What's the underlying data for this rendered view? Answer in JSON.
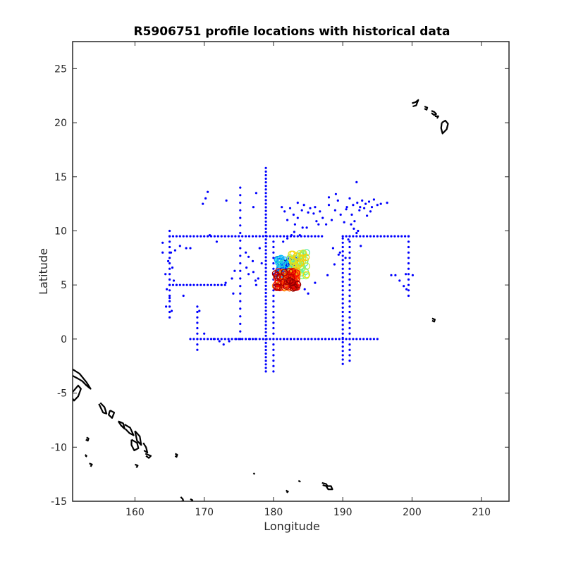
{
  "chart_data": {
    "type": "scatter",
    "title": "R5906751 profile locations with historical data",
    "xlabel": "Longitude",
    "ylabel": "Latitude",
    "xlim": [
      151,
      214
    ],
    "ylim": [
      -15,
      27.5
    ],
    "xticks": [
      160,
      170,
      180,
      190,
      200,
      210
    ],
    "yticks": [
      -15,
      -10,
      -5,
      0,
      5,
      10,
      15,
      20,
      25
    ],
    "xtick_labels": [
      "160",
      "170",
      "180",
      "190",
      "200",
      "210"
    ],
    "ytick_labels": [
      "-15",
      "-10",
      "-5",
      "0",
      "5",
      "10",
      "15",
      "20",
      "25"
    ],
    "grid": false,
    "legend": "none",
    "colors": {
      "historical": "#0000ff",
      "coast": "#000000",
      "track_gradient": [
        "#00008b",
        "#0000ff",
        "#00bfff",
        "#7fff7f",
        "#ffd700",
        "#ff7f00",
        "#ff0000",
        "#8b0000"
      ]
    },
    "series": [
      {
        "kind": "historical",
        "lines": [
          {
            "orient": "h",
            "at": 9.5,
            "from": 165,
            "to": 187,
            "step": 0.5
          },
          {
            "orient": "h",
            "at": 9.5,
            "from": 190,
            "to": 199.5,
            "step": 0.5
          },
          {
            "orient": "h",
            "at": 5.0,
            "from": 165,
            "to": 173,
            "step": 0.5
          },
          {
            "orient": "h",
            "at": 0.0,
            "from": 168,
            "to": 195,
            "step": 0.5
          },
          {
            "orient": "v",
            "at": 165.0,
            "from": 2,
            "to": 10,
            "step": 0.5
          },
          {
            "orient": "v",
            "at": 178.9,
            "from": -3,
            "to": 16,
            "step": 0.33
          },
          {
            "orient": "v",
            "at": 180.0,
            "from": -3,
            "to": 9,
            "step": 0.5
          },
          {
            "orient": "v",
            "at": 190.0,
            "from": -2.3,
            "to": 9.5,
            "step": 0.4
          },
          {
            "orient": "v",
            "at": 191.0,
            "from": -2,
            "to": 9.5,
            "step": 0.5
          },
          {
            "orient": "v",
            "at": 175.2,
            "from": 0,
            "to": 14,
            "step": 0.7
          },
          {
            "orient": "v",
            "at": 169.0,
            "from": -1,
            "to": 3,
            "step": 0.5
          },
          {
            "orient": "v",
            "at": 199.5,
            "from": 4,
            "to": 9.5,
            "step": 0.5
          }
        ],
        "points": [
          [
            170.5,
            13.6
          ],
          [
            170.2,
            13.0
          ],
          [
            169.8,
            12.5
          ],
          [
            173.2,
            12.8
          ],
          [
            177.5,
            13.5
          ],
          [
            177.1,
            12.2
          ],
          [
            181.2,
            12.2
          ],
          [
            181.6,
            11.8
          ],
          [
            182.4,
            12.1
          ],
          [
            182.0,
            11.0
          ],
          [
            183.1,
            10.6
          ],
          [
            183.5,
            12.6
          ],
          [
            184.1,
            11.9
          ],
          [
            184.8,
            10.3
          ],
          [
            185.3,
            12.1
          ],
          [
            185.8,
            11.6
          ],
          [
            186.2,
            10.9
          ],
          [
            186.7,
            11.8
          ],
          [
            187.1,
            11.2
          ],
          [
            187.6,
            10.6
          ],
          [
            188.0,
            12.4
          ],
          [
            188.4,
            11.0
          ],
          [
            188.9,
            11.9
          ],
          [
            189.3,
            12.8
          ],
          [
            189.7,
            11.5
          ],
          [
            190.2,
            10.8
          ],
          [
            190.6,
            12.2
          ],
          [
            191.0,
            13.0
          ],
          [
            191.3,
            11.5
          ],
          [
            191.7,
            10.9
          ],
          [
            192.1,
            12.6
          ],
          [
            192.4,
            11.9
          ],
          [
            192.8,
            12.8
          ],
          [
            193.1,
            12.1
          ],
          [
            193.5,
            11.4
          ],
          [
            193.8,
            12.7
          ],
          [
            194.2,
            12.2
          ],
          [
            194.5,
            12.9
          ],
          [
            195.0,
            12.4
          ],
          [
            195.5,
            12.5
          ],
          [
            196.4,
            12.6
          ],
          [
            192.0,
            14.5
          ],
          [
            183.5,
            11.2
          ],
          [
            185.0,
            11.7
          ],
          [
            186.0,
            12.2
          ],
          [
            188.0,
            13.1
          ],
          [
            189.0,
            13.4
          ],
          [
            190.5,
            12.0
          ],
          [
            191.5,
            12.4
          ],
          [
            192.5,
            12.2
          ],
          [
            193.3,
            12.5
          ],
          [
            194.0,
            11.8
          ],
          [
            184.4,
            12.4
          ],
          [
            182.9,
            11.5
          ],
          [
            192.2,
            10.0
          ],
          [
            191.6,
            10.2
          ],
          [
            191.2,
            10.6
          ],
          [
            192.6,
            8.6
          ],
          [
            186.5,
            10.6
          ],
          [
            184.2,
            10.3
          ],
          [
            183.0,
            9.9
          ],
          [
            190.8,
            9.2
          ],
          [
            192.0,
            9.8
          ],
          [
            165.2,
            8.0
          ],
          [
            164.0,
            8.0
          ],
          [
            165.8,
            8.2
          ],
          [
            166.5,
            8.6
          ],
          [
            167.4,
            8.4
          ],
          [
            168.0,
            8.4
          ],
          [
            171.8,
            9.0
          ],
          [
            173.1,
            5.2
          ],
          [
            174.0,
            5.6
          ],
          [
            174.4,
            6.3
          ],
          [
            176.1,
            6.6
          ],
          [
            176.4,
            6.0
          ],
          [
            177.1,
            6.2
          ],
          [
            177.4,
            5.4
          ],
          [
            176.0,
            8.0
          ],
          [
            176.4,
            7.6
          ],
          [
            177.0,
            7.2
          ],
          [
            178.0,
            8.4
          ],
          [
            178.3,
            7.0
          ],
          [
            177.8,
            5.6
          ],
          [
            177.5,
            5.0
          ],
          [
            164.8,
            7.2
          ],
          [
            165.4,
            6.6
          ],
          [
            164.4,
            6.0
          ],
          [
            165.6,
            5.4
          ],
          [
            164.6,
            4.6
          ],
          [
            165.0,
            3.8
          ],
          [
            164.5,
            3.0
          ],
          [
            165.3,
            2.6
          ],
          [
            164.0,
            8.9
          ],
          [
            166.0,
            5.0
          ],
          [
            167.0,
            4.0
          ],
          [
            168.0,
            5.0
          ],
          [
            184.5,
            4.6
          ],
          [
            185.0,
            4.2
          ],
          [
            186.0,
            5.2
          ],
          [
            187.8,
            5.9
          ],
          [
            188.8,
            6.9
          ],
          [
            189.4,
            7.8
          ],
          [
            188.6,
            8.4
          ],
          [
            189.6,
            8.0
          ],
          [
            190.4,
            7.5
          ],
          [
            181.0,
            6.5
          ],
          [
            181.4,
            9.0
          ],
          [
            182.0,
            9.3
          ],
          [
            182.6,
            9.6
          ],
          [
            183.8,
            9.6
          ],
          [
            197.0,
            5.9
          ],
          [
            197.6,
            5.9
          ],
          [
            198.2,
            5.4
          ],
          [
            198.8,
            4.9
          ],
          [
            199.2,
            4.6
          ],
          [
            200.1,
            5.9
          ],
          [
            199.1,
            6.0
          ],
          [
            171.4,
            0.0
          ],
          [
            172.2,
            -0.2
          ],
          [
            172.8,
            -0.5
          ],
          [
            173.6,
            -0.2
          ],
          [
            174.6,
            0.0
          ],
          [
            176.0,
            0.0
          ],
          [
            176.6,
            0.0
          ],
          [
            177.4,
            0.0
          ],
          [
            181.5,
            0.0
          ],
          [
            182.5,
            0.0
          ],
          [
            183.5,
            0.0
          ],
          [
            184.5,
            0.0
          ],
          [
            185.5,
            0.0
          ],
          [
            186.5,
            0.0
          ],
          [
            187.5,
            0.0
          ],
          [
            188.5,
            0.0
          ],
          [
            170.0,
            0.5
          ],
          [
            169.3,
            2.6
          ],
          [
            174.2,
            4.2
          ],
          [
            170.8,
            9.6
          ],
          [
            172.5,
            5.0
          ]
        ]
      },
      {
        "kind": "float_track",
        "count": 220,
        "lon_range": [
          180.2,
          184.9
        ],
        "lat_range": [
          4.7,
          8.0
        ]
      }
    ],
    "coastlines": [
      [
        [
          151.0,
          -2.8
        ],
        [
          152.0,
          -3.2
        ],
        [
          153.0,
          -4.0
        ],
        [
          153.6,
          -4.6
        ],
        [
          153.0,
          -4.3
        ],
        [
          152.4,
          -3.9
        ],
        [
          151.6,
          -3.6
        ],
        [
          151.0,
          -3.4
        ]
      ],
      [
        [
          151.0,
          -4.9
        ],
        [
          151.8,
          -4.3
        ],
        [
          152.2,
          -4.6
        ],
        [
          151.8,
          -5.3
        ],
        [
          151.2,
          -5.7
        ],
        [
          151.0,
          -5.5
        ]
      ],
      [
        [
          155.0,
          -5.9
        ],
        [
          155.6,
          -6.3
        ],
        [
          155.9,
          -6.9
        ],
        [
          155.4,
          -6.8
        ],
        [
          155.1,
          -6.4
        ],
        [
          154.8,
          -6.0
        ]
      ],
      [
        [
          156.4,
          -6.6
        ],
        [
          157.0,
          -6.8
        ],
        [
          156.7,
          -7.3
        ],
        [
          156.2,
          -7.0
        ],
        [
          156.4,
          -6.6
        ]
      ],
      [
        [
          157.6,
          -7.6
        ],
        [
          158.3,
          -7.8
        ],
        [
          158.5,
          -8.3
        ],
        [
          158.0,
          -8.0
        ],
        [
          157.6,
          -7.6
        ]
      ],
      [
        [
          158.5,
          -7.9
        ],
        [
          159.3,
          -8.2
        ],
        [
          159.8,
          -8.9
        ],
        [
          159.2,
          -8.7
        ],
        [
          158.6,
          -8.3
        ]
      ],
      [
        [
          160.0,
          -8.5
        ],
        [
          160.7,
          -9.0
        ],
        [
          160.9,
          -9.8
        ],
        [
          160.3,
          -9.4
        ],
        [
          160.0,
          -8.5
        ]
      ],
      [
        [
          159.5,
          -9.3
        ],
        [
          160.3,
          -9.6
        ],
        [
          160.5,
          -10.1
        ],
        [
          159.9,
          -10.3
        ],
        [
          159.5,
          -9.8
        ],
        [
          159.5,
          -9.3
        ]
      ],
      [
        [
          161.2,
          -9.6
        ],
        [
          161.6,
          -10.0
        ],
        [
          161.8,
          -10.5
        ],
        [
          161.3,
          -10.3
        ]
      ],
      [
        [
          161.5,
          -10.6
        ],
        [
          162.3,
          -10.8
        ],
        [
          162.0,
          -11.0
        ],
        [
          161.6,
          -10.8
        ]
      ],
      [
        [
          153.0,
          -9.1
        ],
        [
          153.3,
          -9.2
        ],
        [
          153.2,
          -9.4
        ],
        [
          152.9,
          -9.3
        ]
      ],
      [
        [
          153.4,
          -11.5
        ],
        [
          153.8,
          -11.6
        ],
        [
          153.6,
          -11.8
        ]
      ],
      [
        [
          152.8,
          -10.7
        ],
        [
          153.0,
          -10.8
        ],
        [
          152.9,
          -10.9
        ]
      ],
      [
        [
          160.0,
          -11.6
        ],
        [
          160.4,
          -11.7
        ],
        [
          160.2,
          -11.9
        ]
      ],
      [
        [
          165.8,
          -10.6
        ],
        [
          166.1,
          -10.7
        ],
        [
          166.0,
          -10.9
        ],
        [
          165.8,
          -10.8
        ]
      ],
      [
        [
          166.6,
          -14.6
        ],
        [
          166.9,
          -14.8
        ],
        [
          167.0,
          -15.0
        ],
        [
          166.7,
          -15.0
        ]
      ],
      [
        [
          168.0,
          -14.8
        ],
        [
          168.3,
          -14.9
        ],
        [
          168.2,
          -15.0
        ]
      ],
      [
        [
          177.1,
          -12.4
        ],
        [
          177.3,
          -12.5
        ]
      ],
      [
        [
          181.8,
          -14.0
        ],
        [
          182.1,
          -14.1
        ],
        [
          181.9,
          -14.2
        ]
      ],
      [
        [
          183.6,
          -13.1
        ],
        [
          183.9,
          -13.2
        ]
      ],
      [
        [
          187.0,
          -13.3
        ],
        [
          187.6,
          -13.4
        ],
        [
          187.8,
          -13.6
        ],
        [
          188.3,
          -13.6
        ],
        [
          188.5,
          -13.9
        ],
        [
          187.9,
          -13.9
        ],
        [
          187.6,
          -13.6
        ],
        [
          187.1,
          -13.5
        ]
      ],
      [
        [
          200.0,
          21.8
        ],
        [
          200.5,
          21.9
        ],
        [
          200.9,
          22.1
        ],
        [
          200.6,
          21.6
        ],
        [
          200.1,
          21.5
        ]
      ],
      [
        [
          201.8,
          21.5
        ],
        [
          202.2,
          21.4
        ],
        [
          202.1,
          21.2
        ],
        [
          201.8,
          21.3
        ]
      ],
      [
        [
          202.8,
          21.1
        ],
        [
          203.2,
          21.0
        ],
        [
          203.5,
          20.8
        ],
        [
          203.2,
          20.7
        ],
        [
          202.8,
          20.9
        ]
      ],
      [
        [
          203.3,
          20.6
        ],
        [
          203.8,
          20.6
        ],
        [
          203.6,
          20.4
        ]
      ],
      [
        [
          204.3,
          20.0
        ],
        [
          204.8,
          20.2
        ],
        [
          205.2,
          19.9
        ],
        [
          205.0,
          19.4
        ],
        [
          204.4,
          19.0
        ],
        [
          204.2,
          19.5
        ],
        [
          204.3,
          20.0
        ]
      ],
      [
        [
          202.9,
          1.9
        ],
        [
          203.3,
          1.8
        ],
        [
          203.2,
          1.6
        ],
        [
          202.9,
          1.7
        ]
      ]
    ]
  }
}
